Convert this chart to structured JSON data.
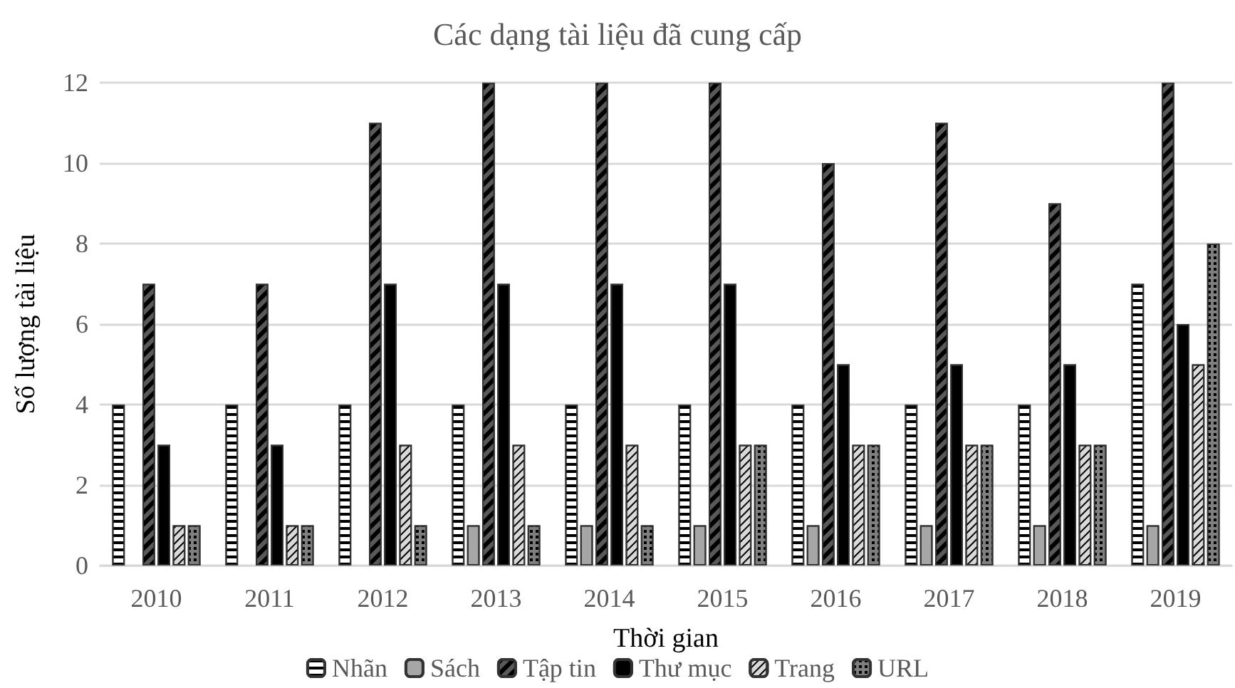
{
  "chart_data": {
    "type": "bar",
    "title": "Các dạng tài liệu đã cung cấp",
    "xlabel": "Thời gian",
    "ylabel": "Số lượng tài liệu",
    "categories": [
      "2010",
      "2011",
      "2012",
      "2013",
      "2014",
      "2015",
      "2016",
      "2017",
      "2018",
      "2019"
    ],
    "series": [
      {
        "name": "Nhãn",
        "color": "#ffffff",
        "values": [
          4,
          4,
          4,
          4,
          4,
          4,
          4,
          4,
          4,
          7
        ]
      },
      {
        "name": "Sách",
        "color": "#a6a6a6",
        "values": [
          0,
          0,
          0,
          1,
          1,
          1,
          1,
          1,
          1,
          1
        ]
      },
      {
        "name": "Tập tin",
        "color": "#595959",
        "values": [
          7,
          7,
          11,
          12,
          12,
          12,
          10,
          11,
          9,
          12
        ]
      },
      {
        "name": "Thư mục",
        "color": "#000000",
        "values": [
          3,
          3,
          7,
          7,
          7,
          7,
          5,
          5,
          5,
          6
        ]
      },
      {
        "name": "Trang",
        "color": "#d9d9d9",
        "values": [
          1,
          1,
          3,
          3,
          3,
          3,
          3,
          3,
          3,
          5
        ]
      },
      {
        "name": "URL",
        "color": "#7f7f7f",
        "values": [
          1,
          1,
          1,
          1,
          1,
          3,
          3,
          3,
          3,
          8
        ]
      }
    ],
    "ylim": [
      0,
      12
    ],
    "yticks": [
      0,
      2,
      4,
      6,
      8,
      10,
      12
    ],
    "grid": "y",
    "legend": "bottom"
  }
}
